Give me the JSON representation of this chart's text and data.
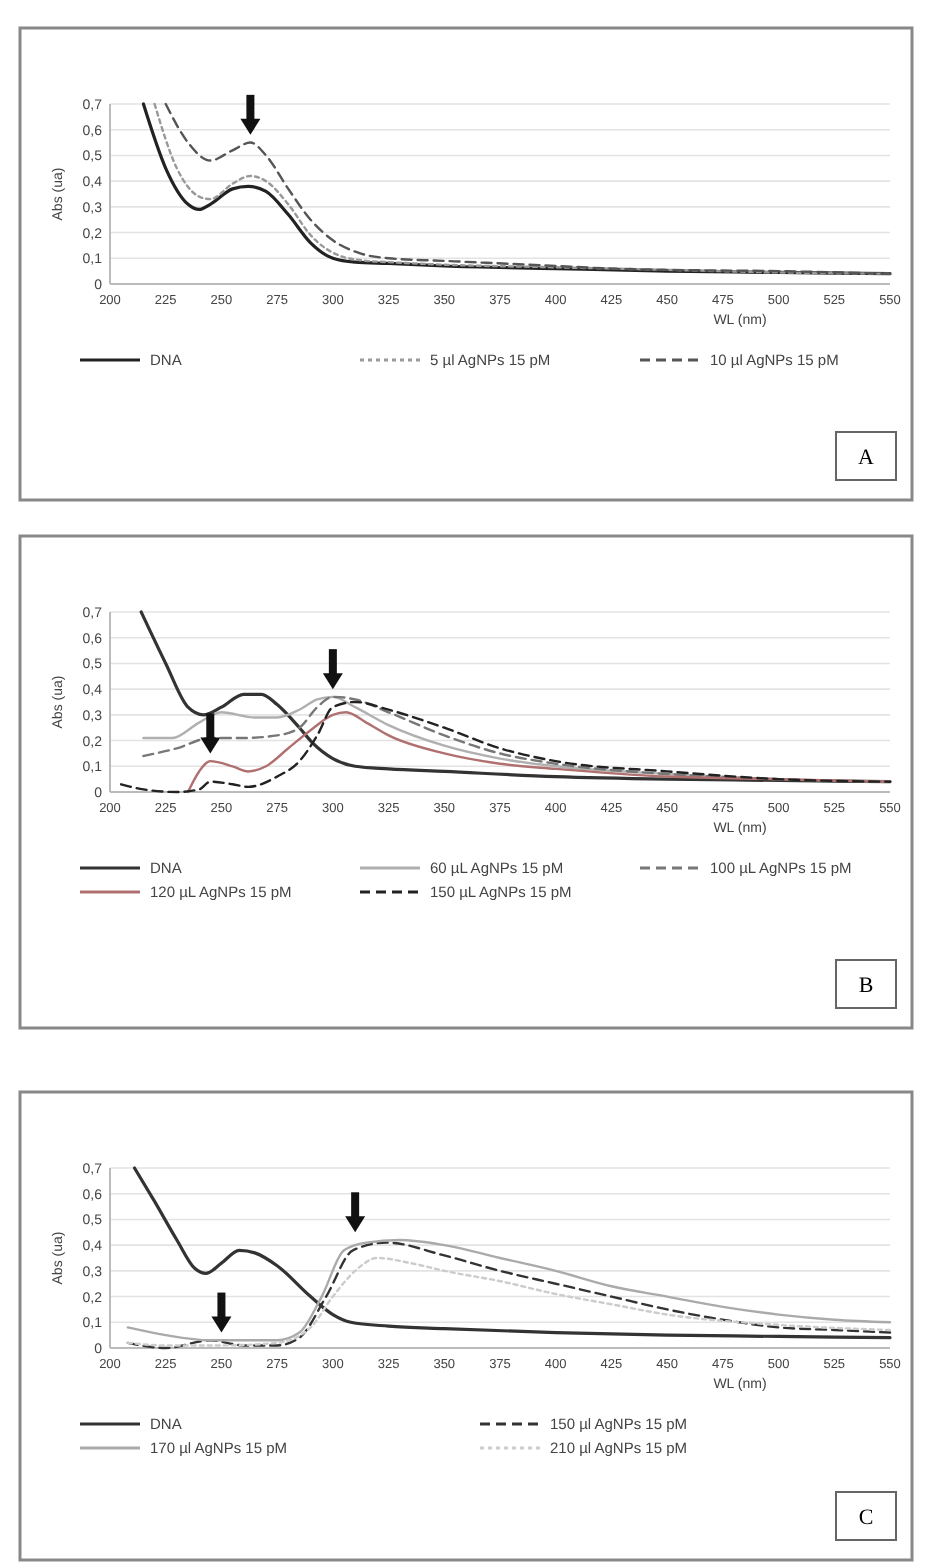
{
  "chart_data": [
    {
      "type": "line",
      "xlabel": "WL (nm)",
      "ylabel": "Abs (ua)",
      "xlim": [
        200,
        550
      ],
      "xticks": [
        200,
        225,
        250,
        275,
        300,
        325,
        350,
        375,
        400,
        425,
        450,
        475,
        500,
        525,
        550
      ],
      "ylim": [
        0,
        0.7
      ],
      "yticks": [
        {
          "value": 0,
          "label": "0"
        },
        {
          "value": 0.1,
          "label": "0,1"
        },
        {
          "value": 0.2,
          "label": "0,2"
        },
        {
          "value": 0.3,
          "label": "0,3"
        },
        {
          "value": 0.4,
          "label": "0,4"
        },
        {
          "value": 0.5,
          "label": "0,5"
        },
        {
          "value": 0.6,
          "label": "0,6"
        },
        {
          "value": 0.7,
          "label": "0,7"
        }
      ],
      "grid": "y",
      "legend": "bottom",
      "annotations": [
        "A"
      ],
      "series": [
        {
          "name": "DNA",
          "color": "#222222",
          "line_style": "solid",
          "x": [
            215,
            225,
            235,
            240,
            245,
            255,
            262,
            270,
            280,
            290,
            300,
            310,
            325,
            350,
            400,
            450,
            500,
            550
          ],
          "values": [
            0.7,
            0.45,
            0.31,
            0.29,
            0.31,
            0.37,
            0.38,
            0.36,
            0.27,
            0.16,
            0.1,
            0.085,
            0.08,
            0.07,
            0.06,
            0.05,
            0.045,
            0.04
          ]
        },
        {
          "name": "5 µl AgNPs 15 pM",
          "color": "#999999",
          "line_style": "dotted",
          "x": [
            220,
            230,
            240,
            245,
            255,
            263,
            270,
            280,
            290,
            303,
            315,
            325,
            350,
            400,
            450,
            500,
            550
          ],
          "values": [
            0.7,
            0.45,
            0.34,
            0.33,
            0.39,
            0.42,
            0.4,
            0.31,
            0.19,
            0.11,
            0.09,
            0.085,
            0.075,
            0.065,
            0.055,
            0.045,
            0.04
          ]
        },
        {
          "name": "10 µl AgNPs 15 pM",
          "color": "#555555",
          "line_style": "dashed",
          "x": [
            225,
            235,
            245,
            255,
            263,
            270,
            280,
            290,
            300,
            312,
            325,
            350,
            400,
            425,
            450,
            500,
            550
          ],
          "values": [
            0.7,
            0.55,
            0.48,
            0.52,
            0.55,
            0.5,
            0.37,
            0.25,
            0.17,
            0.12,
            0.1,
            0.09,
            0.07,
            0.06,
            0.055,
            0.05,
            0.04
          ]
        }
      ]
    },
    {
      "type": "line",
      "xlabel": "WL (nm)",
      "ylabel": "Abs (ua)",
      "xlim": [
        200,
        550
      ],
      "xticks": [
        200,
        225,
        250,
        275,
        300,
        325,
        350,
        375,
        400,
        425,
        450,
        475,
        500,
        525,
        550
      ],
      "ylim": [
        0,
        0.7
      ],
      "yticks": [
        {
          "value": 0,
          "label": "0"
        },
        {
          "value": 0.1,
          "label": "0,1"
        },
        {
          "value": 0.2,
          "label": "0,2"
        },
        {
          "value": 0.3,
          "label": "0,3"
        },
        {
          "value": 0.4,
          "label": "0,4"
        },
        {
          "value": 0.5,
          "label": "0,5"
        },
        {
          "value": 0.6,
          "label": "0,6"
        },
        {
          "value": 0.7,
          "label": "0,7"
        }
      ],
      "grid": "y",
      "legend": "bottom",
      "annotations": [
        "B"
      ],
      "series": [
        {
          "name": "DNA",
          "color": "#333333",
          "line_style": "solid",
          "x": [
            214,
            225,
            235,
            242,
            250,
            260,
            268,
            275,
            285,
            291,
            300,
            310,
            325,
            350,
            400,
            450,
            500,
            550
          ],
          "values": [
            0.7,
            0.5,
            0.33,
            0.3,
            0.33,
            0.38,
            0.38,
            0.34,
            0.25,
            0.19,
            0.13,
            0.1,
            0.09,
            0.08,
            0.06,
            0.05,
            0.045,
            0.04
          ]
        },
        {
          "name": "60 µL AgNPs 15 pM",
          "color": "#b0b0b0",
          "line_style": "solid",
          "x": [
            215,
            228,
            240,
            250,
            265,
            275,
            285,
            293,
            300,
            310,
            325,
            350,
            375,
            400,
            450,
            500,
            550
          ],
          "values": [
            0.21,
            0.21,
            0.27,
            0.31,
            0.29,
            0.29,
            0.32,
            0.36,
            0.37,
            0.33,
            0.26,
            0.18,
            0.13,
            0.1,
            0.07,
            0.05,
            0.04
          ]
        },
        {
          "name": "100 µL AgNPs 15 pM",
          "color": "#777777",
          "line_style": "dashed",
          "x": [
            215,
            230,
            245,
            260,
            275,
            285,
            293,
            300,
            310,
            325,
            350,
            375,
            400,
            450,
            500,
            550
          ],
          "values": [
            0.14,
            0.17,
            0.21,
            0.21,
            0.22,
            0.25,
            0.33,
            0.37,
            0.36,
            0.31,
            0.22,
            0.15,
            0.11,
            0.07,
            0.05,
            0.04
          ]
        },
        {
          "name": "120 µL AgNPs 15 pM",
          "color": "#b07070",
          "line_style": "solid",
          "x": [
            235,
            240,
            245,
            255,
            262,
            270,
            280,
            290,
            300,
            306,
            315,
            325,
            350,
            375,
            400,
            450,
            500,
            550
          ],
          "values": [
            0,
            0.08,
            0.12,
            0.1,
            0.08,
            0.1,
            0.17,
            0.24,
            0.3,
            0.31,
            0.27,
            0.22,
            0.15,
            0.11,
            0.09,
            0.06,
            0.05,
            0.04
          ]
        },
        {
          "name": "150 µL AgNPs 15 pM",
          "color": "#222222",
          "line_style": "dashed",
          "x": [
            205,
            215,
            230,
            240,
            245,
            255,
            262,
            275,
            285,
            293,
            300,
            310,
            325,
            350,
            375,
            400,
            450,
            500,
            550
          ],
          "values": [
            0.03,
            0.01,
            0,
            0.01,
            0.04,
            0.03,
            0.02,
            0.06,
            0.12,
            0.22,
            0.33,
            0.35,
            0.32,
            0.25,
            0.17,
            0.12,
            0.08,
            0.05,
            0.04
          ]
        }
      ]
    },
    {
      "type": "line",
      "xlabel": "WL (nm)",
      "ylabel": "Abs (ua)",
      "xlim": [
        200,
        550
      ],
      "xticks": [
        200,
        225,
        250,
        275,
        300,
        325,
        350,
        375,
        400,
        425,
        450,
        475,
        500,
        525,
        550
      ],
      "ylim": [
        0,
        0.7
      ],
      "yticks": [
        {
          "value": 0,
          "label": "0"
        },
        {
          "value": 0.1,
          "label": "0,1"
        },
        {
          "value": 0.2,
          "label": "0,2"
        },
        {
          "value": 0.3,
          "label": "0,3"
        },
        {
          "value": 0.4,
          "label": "0,4"
        },
        {
          "value": 0.5,
          "label": "0,5"
        },
        {
          "value": 0.6,
          "label": "0,6"
        },
        {
          "value": 0.7,
          "label": "0,7"
        }
      ],
      "grid": "y",
      "legend": "bottom",
      "annotations": [
        "C"
      ],
      "series": [
        {
          "name": "DNA",
          "color": "#333333",
          "line_style": "solid",
          "x": [
            211,
            220,
            230,
            238,
            243,
            250,
            258,
            265,
            275,
            290,
            300,
            308,
            325,
            350,
            400,
            450,
            500,
            550
          ],
          "values": [
            0.7,
            0.57,
            0.42,
            0.31,
            0.29,
            0.33,
            0.38,
            0.37,
            0.32,
            0.2,
            0.13,
            0.1,
            0.085,
            0.075,
            0.06,
            0.05,
            0.045,
            0.04
          ]
        },
        {
          "name": "150 µl AgNPs 15 pM",
          "color": "#333333",
          "line_style": "dashed",
          "x": [
            208,
            225,
            245,
            260,
            275,
            285,
            297,
            309,
            324,
            350,
            375,
            400,
            425,
            450,
            475,
            500,
            525,
            550
          ],
          "values": [
            0.02,
            0,
            0.03,
            0.01,
            0.01,
            0.04,
            0.2,
            0.38,
            0.41,
            0.36,
            0.3,
            0.25,
            0.2,
            0.15,
            0.11,
            0.08,
            0.07,
            0.06
          ]
        },
        {
          "name": "170 µl AgNPs 15 pM",
          "color": "#aaaaaa",
          "line_style": "solid",
          "x": [
            208,
            225,
            245,
            275,
            285,
            295,
            305,
            315,
            330,
            350,
            375,
            400,
            425,
            450,
            475,
            500,
            525,
            550
          ],
          "values": [
            0.08,
            0.05,
            0.03,
            0.03,
            0.06,
            0.2,
            0.38,
            0.41,
            0.42,
            0.4,
            0.35,
            0.3,
            0.24,
            0.2,
            0.16,
            0.13,
            0.11,
            0.1
          ]
        },
        {
          "name": "210 µl AgNPs 15 pM",
          "color": "#cccccc",
          "line_style": "dotted",
          "x": [
            208,
            225,
            250,
            275,
            290,
            300,
            310,
            320,
            335,
            350,
            375,
            400,
            425,
            450,
            500,
            550
          ],
          "values": [
            0.02,
            0.01,
            0.01,
            0.02,
            0.08,
            0.2,
            0.3,
            0.35,
            0.33,
            0.3,
            0.26,
            0.21,
            0.17,
            0.13,
            0.09,
            0.07
          ]
        }
      ]
    }
  ]
}
